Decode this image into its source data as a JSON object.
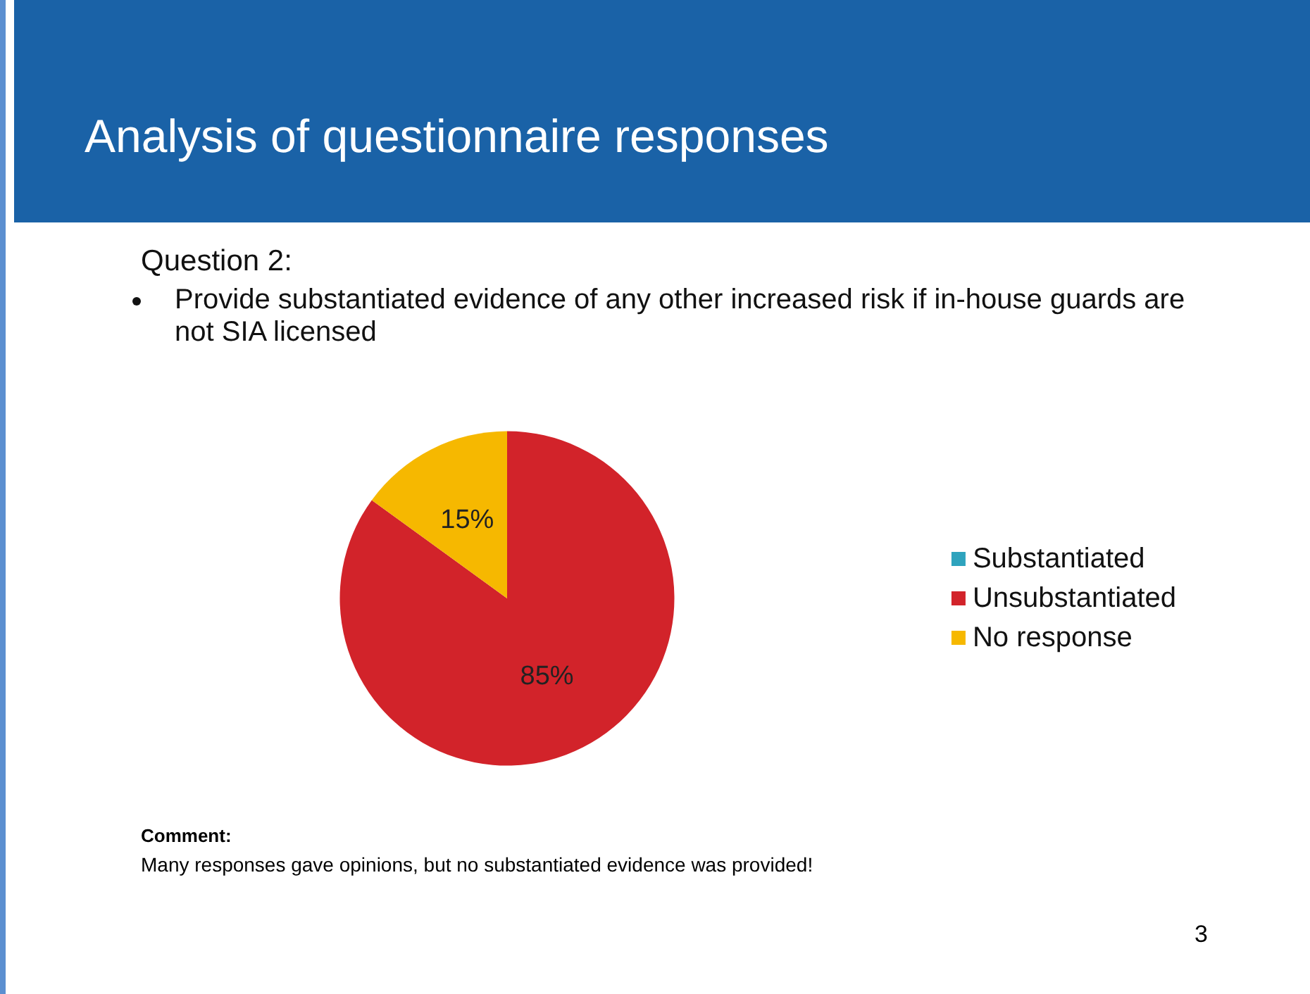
{
  "chart_data": {
    "type": "pie",
    "title": "Analysis of questionnaire responses",
    "subtitle": "Question 2:",
    "annotations": [
      "Provide substantiated evidence of any other increased risk if in-house guards are not SIA licensed",
      "Comment:",
      "Many responses gave opinions, but no substantiated evidence was provided!",
      "3"
    ],
    "categories": [
      "Substantiated",
      "Unsubstantiated",
      "No response"
    ],
    "values": [
      0,
      85,
      15
    ],
    "colors": [
      "#2ea3bd",
      "#d2232a",
      "#f6b800"
    ],
    "value_labels": [
      null,
      "85%",
      "15%"
    ],
    "legend": "right"
  }
}
